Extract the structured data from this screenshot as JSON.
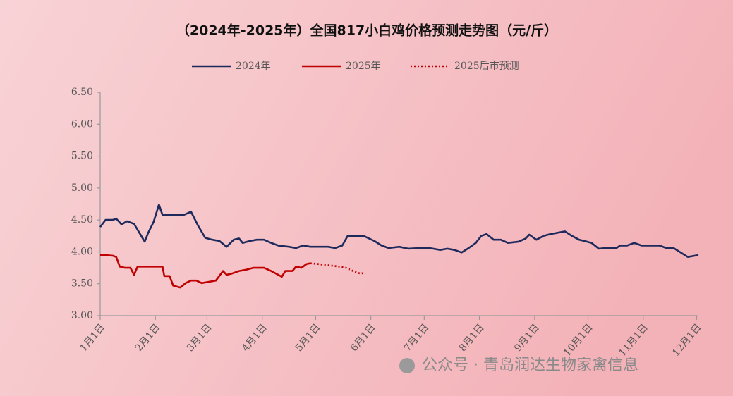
{
  "chart_data": {
    "type": "line",
    "title": "（2024年-2025年）全国817小白鸡价格预测走势图（元/斤）",
    "watermark": "公众号 · 青岛润达生物家禽信息",
    "xlim": [
      0,
      336
    ],
    "xticks": [
      {
        "value": 0,
        "label": "1月1日"
      },
      {
        "value": 31,
        "label": "2月1日"
      },
      {
        "value": 60,
        "label": "3月1日"
      },
      {
        "value": 91,
        "label": "4月1日"
      },
      {
        "value": 121,
        "label": "5月1日"
      },
      {
        "value": 152,
        "label": "6月1日"
      },
      {
        "value": 182,
        "label": "7月1日"
      },
      {
        "value": 213,
        "label": "8月1日"
      },
      {
        "value": 244,
        "label": "9月1日"
      },
      {
        "value": 274,
        "label": "10月1日"
      },
      {
        "value": 305,
        "label": "11月1日"
      },
      {
        "value": 335,
        "label": "12月1日"
      }
    ],
    "ylim": [
      3,
      6.5
    ],
    "yticks": [
      {
        "value": 3,
        "label": "3.00"
      },
      {
        "value": 3.5,
        "label": "3.50"
      },
      {
        "value": 4,
        "label": "4.00"
      },
      {
        "value": 4.5,
        "label": "4.50"
      },
      {
        "value": 5,
        "label": "5.00"
      },
      {
        "value": 5.5,
        "label": "5.50"
      },
      {
        "value": 6,
        "label": "6.00"
      },
      {
        "value": 6.5,
        "label": "6.50"
      }
    ],
    "grid": false,
    "legend": "top",
    "series": [
      {
        "name": "2024年",
        "color": "#1f2a5c",
        "style": "solid",
        "x": [
          0,
          3,
          7,
          9,
          12,
          15,
          19,
          22,
          25,
          27,
          30,
          33,
          35,
          41,
          47,
          51,
          55,
          59,
          63,
          67,
          71,
          75,
          78,
          80,
          84,
          88,
          92,
          96,
          100,
          106,
          110,
          114,
          118,
          122,
          128,
          132,
          136,
          139,
          143,
          148,
          154,
          158,
          162,
          168,
          173,
          179,
          185,
          191,
          195,
          199,
          203,
          207,
          211,
          214,
          217,
          221,
          225,
          229,
          235,
          239,
          241,
          245,
          249,
          253,
          257,
          261,
          265,
          269,
          272,
          276,
          280,
          284,
          290,
          292,
          296,
          300,
          304,
          308,
          314,
          318,
          322,
          326,
          330,
          336
        ],
        "values": [
          4.39,
          4.5,
          4.5,
          4.52,
          4.43,
          4.48,
          4.44,
          4.3,
          4.16,
          4.3,
          4.47,
          4.74,
          4.58,
          4.58,
          4.58,
          4.63,
          4.41,
          4.22,
          4.19,
          4.17,
          4.08,
          4.19,
          4.21,
          4.14,
          4.17,
          4.19,
          4.19,
          4.14,
          4.1,
          4.08,
          4.06,
          4.1,
          4.08,
          4.08,
          4.08,
          4.06,
          4.1,
          4.25,
          4.25,
          4.25,
          4.17,
          4.1,
          4.06,
          4.08,
          4.05,
          4.06,
          4.06,
          4.03,
          4.05,
          4.03,
          3.99,
          4.06,
          4.14,
          4.25,
          4.28,
          4.19,
          4.19,
          4.14,
          4.16,
          4.21,
          4.27,
          4.19,
          4.25,
          4.28,
          4.3,
          4.32,
          4.25,
          4.19,
          4.17,
          4.14,
          4.05,
          4.06,
          4.06,
          4.1,
          4.1,
          4.14,
          4.1,
          4.1,
          4.1,
          4.06,
          4.06,
          3.99,
          3.92,
          3.95
        ]
      },
      {
        "name": "2025年",
        "color": "#c00000",
        "style": "solid",
        "x": [
          0,
          3,
          7,
          9,
          11,
          14,
          17,
          19,
          21,
          25,
          29,
          35,
          36,
          39,
          41,
          45,
          48,
          51,
          54,
          57,
          61,
          65,
          69,
          71,
          74,
          78,
          82,
          86,
          92,
          96,
          100,
          102,
          104,
          108,
          110,
          113,
          116,
          118
        ],
        "values": [
          3.95,
          3.95,
          3.94,
          3.92,
          3.77,
          3.75,
          3.75,
          3.64,
          3.77,
          3.77,
          3.77,
          3.77,
          3.62,
          3.62,
          3.47,
          3.44,
          3.51,
          3.55,
          3.55,
          3.51,
          3.53,
          3.55,
          3.7,
          3.64,
          3.66,
          3.7,
          3.72,
          3.75,
          3.75,
          3.7,
          3.64,
          3.61,
          3.7,
          3.7,
          3.77,
          3.75,
          3.81,
          3.82
        ]
      },
      {
        "name": "2025后市预测",
        "color": "#c00000",
        "style": "dotted",
        "x": [
          118,
          122,
          128,
          134,
          138,
          142,
          146,
          149
        ],
        "values": [
          3.82,
          3.81,
          3.79,
          3.77,
          3.75,
          3.7,
          3.66,
          3.67
        ]
      }
    ]
  }
}
